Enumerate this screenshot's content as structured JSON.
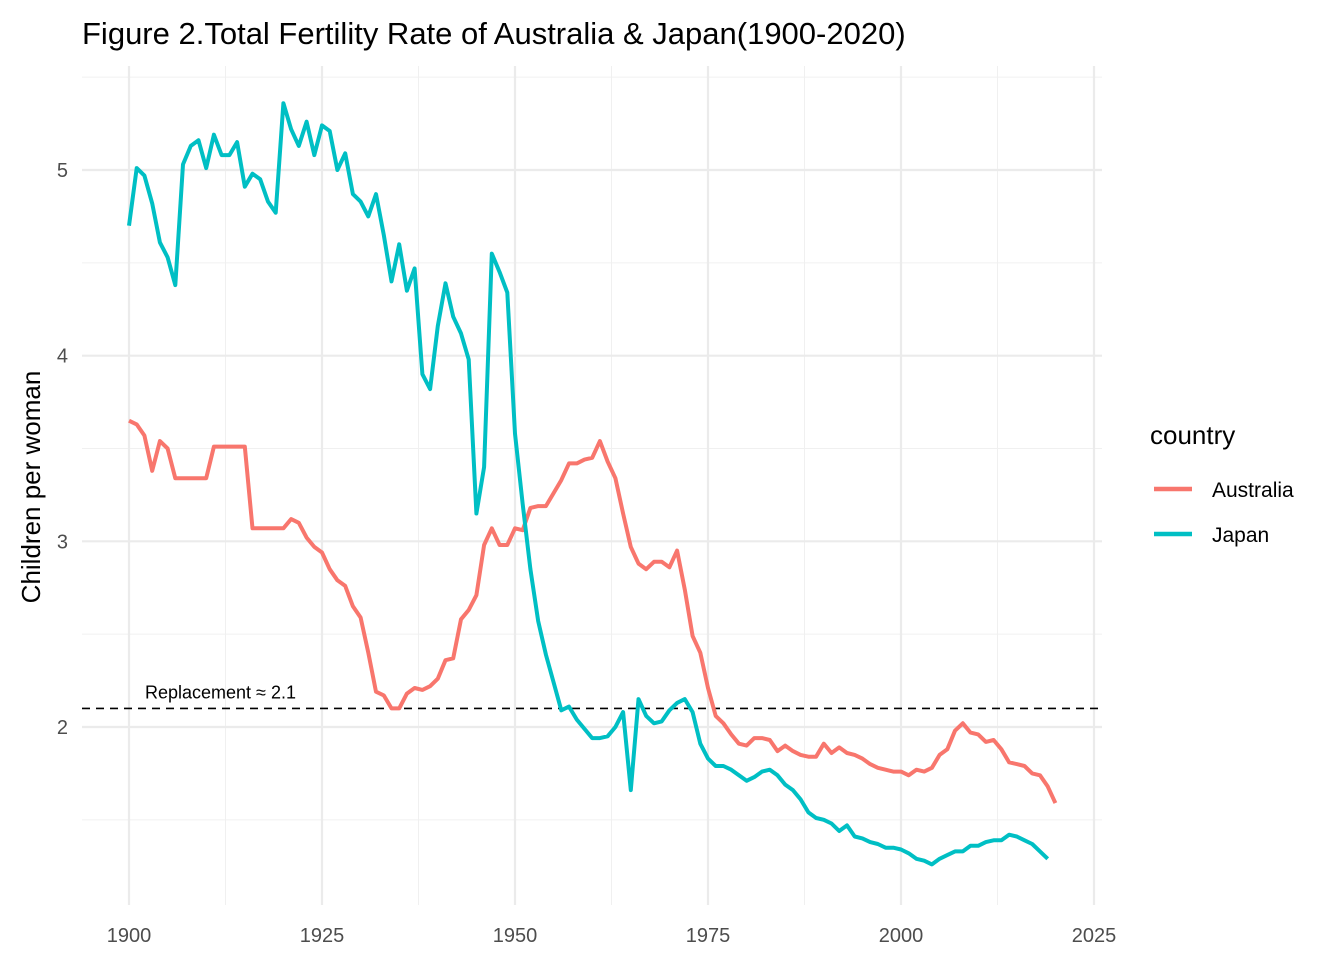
{
  "chart_data": {
    "type": "line",
    "title": "Figure 2.Total Fertility Rate of Australia & Japan(1900-2020)",
    "xlabel": "",
    "ylabel": "Children per woman",
    "xlim": [
      1900,
      2025
    ],
    "ylim": [
      1.2,
      5.5
    ],
    "x_ticks": [
      1900,
      1925,
      1950,
      1975,
      2000,
      2025
    ],
    "y_ticks": [
      2,
      3,
      4,
      5
    ],
    "grid": true,
    "legend": {
      "title": "country",
      "position": "right"
    },
    "reference_line": {
      "y": 2.1,
      "style": "dashed",
      "label": "Replacement ≈ 2.1"
    },
    "series": [
      {
        "name": "Australia",
        "color": "#F8766D",
        "points": [
          [
            1900,
            3.65
          ],
          [
            1901,
            3.63
          ],
          [
            1902,
            3.57
          ],
          [
            1903,
            3.38
          ],
          [
            1904,
            3.54
          ],
          [
            1905,
            3.5
          ],
          [
            1906,
            3.34
          ],
          [
            1907,
            3.34
          ],
          [
            1908,
            3.34
          ],
          [
            1909,
            3.34
          ],
          [
            1910,
            3.34
          ],
          [
            1911,
            3.51
          ],
          [
            1912,
            3.51
          ],
          [
            1913,
            3.51
          ],
          [
            1914,
            3.51
          ],
          [
            1915,
            3.51
          ],
          [
            1916,
            3.07
          ],
          [
            1917,
            3.07
          ],
          [
            1918,
            3.07
          ],
          [
            1919,
            3.07
          ],
          [
            1920,
            3.07
          ],
          [
            1921,
            3.12
          ],
          [
            1922,
            3.1
          ],
          [
            1923,
            3.02
          ],
          [
            1924,
            2.97
          ],
          [
            1925,
            2.94
          ],
          [
            1926,
            2.85
          ],
          [
            1927,
            2.79
          ],
          [
            1928,
            2.76
          ],
          [
            1929,
            2.65
          ],
          [
            1930,
            2.59
          ],
          [
            1931,
            2.4
          ],
          [
            1932,
            2.19
          ],
          [
            1933,
            2.17
          ],
          [
            1934,
            2.1
          ],
          [
            1935,
            2.1
          ],
          [
            1936,
            2.18
          ],
          [
            1937,
            2.21
          ],
          [
            1938,
            2.2
          ],
          [
            1939,
            2.22
          ],
          [
            1940,
            2.26
          ],
          [
            1941,
            2.36
          ],
          [
            1942,
            2.37
          ],
          [
            1943,
            2.58
          ],
          [
            1944,
            2.63
          ],
          [
            1945,
            2.71
          ],
          [
            1946,
            2.98
          ],
          [
            1947,
            3.07
          ],
          [
            1948,
            2.98
          ],
          [
            1949,
            2.98
          ],
          [
            1950,
            3.07
          ],
          [
            1951,
            3.06
          ],
          [
            1952,
            3.18
          ],
          [
            1953,
            3.19
          ],
          [
            1954,
            3.19
          ],
          [
            1955,
            3.26
          ],
          [
            1956,
            3.33
          ],
          [
            1957,
            3.42
          ],
          [
            1958,
            3.42
          ],
          [
            1959,
            3.44
          ],
          [
            1960,
            3.45
          ],
          [
            1961,
            3.54
          ],
          [
            1962,
            3.43
          ],
          [
            1963,
            3.34
          ],
          [
            1964,
            3.15
          ],
          [
            1965,
            2.97
          ],
          [
            1966,
            2.88
          ],
          [
            1967,
            2.85
          ],
          [
            1968,
            2.89
          ],
          [
            1969,
            2.89
          ],
          [
            1970,
            2.86
          ],
          [
            1971,
            2.95
          ],
          [
            1972,
            2.74
          ],
          [
            1973,
            2.49
          ],
          [
            1974,
            2.4
          ],
          [
            1975,
            2.21
          ],
          [
            1976,
            2.06
          ],
          [
            1977,
            2.02
          ],
          [
            1978,
            1.96
          ],
          [
            1979,
            1.91
          ],
          [
            1980,
            1.9
          ],
          [
            1981,
            1.94
          ],
          [
            1982,
            1.94
          ],
          [
            1983,
            1.93
          ],
          [
            1984,
            1.87
          ],
          [
            1985,
            1.9
          ],
          [
            1986,
            1.87
          ],
          [
            1987,
            1.85
          ],
          [
            1988,
            1.84
          ],
          [
            1989,
            1.84
          ],
          [
            1990,
            1.91
          ],
          [
            1991,
            1.86
          ],
          [
            1992,
            1.89
          ],
          [
            1993,
            1.86
          ],
          [
            1994,
            1.85
          ],
          [
            1995,
            1.83
          ],
          [
            1996,
            1.8
          ],
          [
            1997,
            1.78
          ],
          [
            1998,
            1.77
          ],
          [
            1999,
            1.76
          ],
          [
            2000,
            1.76
          ],
          [
            2001,
            1.74
          ],
          [
            2002,
            1.77
          ],
          [
            2003,
            1.76
          ],
          [
            2004,
            1.78
          ],
          [
            2005,
            1.85
          ],
          [
            2006,
            1.88
          ],
          [
            2007,
            1.98
          ],
          [
            2008,
            2.02
          ],
          [
            2009,
            1.97
          ],
          [
            2010,
            1.96
          ],
          [
            2011,
            1.92
          ],
          [
            2012,
            1.93
          ],
          [
            2013,
            1.88
          ],
          [
            2014,
            1.81
          ],
          [
            2015,
            1.8
          ],
          [
            2016,
            1.79
          ],
          [
            2017,
            1.75
          ],
          [
            2018,
            1.74
          ],
          [
            2019,
            1.68
          ],
          [
            2020,
            1.59
          ]
        ]
      },
      {
        "name": "Japan",
        "color": "#00BFC4",
        "points": [
          [
            1900,
            4.7
          ],
          [
            1901,
            5.01
          ],
          [
            1902,
            4.97
          ],
          [
            1903,
            4.82
          ],
          [
            1904,
            4.61
          ],
          [
            1905,
            4.53
          ],
          [
            1906,
            4.38
          ],
          [
            1907,
            5.03
          ],
          [
            1908,
            5.13
          ],
          [
            1909,
            5.16
          ],
          [
            1910,
            5.01
          ],
          [
            1911,
            5.19
          ],
          [
            1912,
            5.08
          ],
          [
            1913,
            5.08
          ],
          [
            1914,
            5.15
          ],
          [
            1915,
            4.91
          ],
          [
            1916,
            4.98
          ],
          [
            1917,
            4.95
          ],
          [
            1918,
            4.83
          ],
          [
            1919,
            4.77
          ],
          [
            1920,
            5.36
          ],
          [
            1921,
            5.22
          ],
          [
            1922,
            5.13
          ],
          [
            1923,
            5.26
          ],
          [
            1924,
            5.08
          ],
          [
            1925,
            5.24
          ],
          [
            1926,
            5.21
          ],
          [
            1927,
            5.0
          ],
          [
            1928,
            5.09
          ],
          [
            1929,
            4.87
          ],
          [
            1930,
            4.83
          ],
          [
            1931,
            4.75
          ],
          [
            1932,
            4.87
          ],
          [
            1933,
            4.65
          ],
          [
            1934,
            4.4
          ],
          [
            1935,
            4.6
          ],
          [
            1936,
            4.35
          ],
          [
            1937,
            4.47
          ],
          [
            1938,
            3.9
          ],
          [
            1939,
            3.82
          ],
          [
            1940,
            4.16
          ],
          [
            1941,
            4.39
          ],
          [
            1942,
            4.21
          ],
          [
            1943,
            4.12
          ],
          [
            1944,
            3.98
          ],
          [
            1945,
            3.15
          ],
          [
            1946,
            3.4
          ],
          [
            1947,
            4.55
          ],
          [
            1948,
            4.45
          ],
          [
            1949,
            4.34
          ],
          [
            1950,
            3.58
          ],
          [
            1951,
            3.2
          ],
          [
            1952,
            2.85
          ],
          [
            1953,
            2.57
          ],
          [
            1954,
            2.39
          ],
          [
            1955,
            2.24
          ],
          [
            1956,
            2.09
          ],
          [
            1957,
            2.11
          ],
          [
            1958,
            2.04
          ],
          [
            1959,
            1.99
          ],
          [
            1960,
            1.94
          ],
          [
            1961,
            1.94
          ],
          [
            1962,
            1.95
          ],
          [
            1963,
            2.0
          ],
          [
            1964,
            2.08
          ],
          [
            1965,
            1.66
          ],
          [
            1966,
            2.15
          ],
          [
            1967,
            2.06
          ],
          [
            1968,
            2.02
          ],
          [
            1969,
            2.03
          ],
          [
            1970,
            2.09
          ],
          [
            1971,
            2.13
          ],
          [
            1972,
            2.15
          ],
          [
            1973,
            2.08
          ],
          [
            1974,
            1.91
          ],
          [
            1975,
            1.83
          ],
          [
            1976,
            1.79
          ],
          [
            1977,
            1.79
          ],
          [
            1978,
            1.77
          ],
          [
            1979,
            1.74
          ],
          [
            1980,
            1.71
          ],
          [
            1981,
            1.73
          ],
          [
            1982,
            1.76
          ],
          [
            1983,
            1.77
          ],
          [
            1984,
            1.74
          ],
          [
            1985,
            1.69
          ],
          [
            1986,
            1.66
          ],
          [
            1987,
            1.61
          ],
          [
            1988,
            1.54
          ],
          [
            1989,
            1.51
          ],
          [
            1990,
            1.5
          ],
          [
            1991,
            1.48
          ],
          [
            1992,
            1.44
          ],
          [
            1993,
            1.47
          ],
          [
            1994,
            1.41
          ],
          [
            1995,
            1.4
          ],
          [
            1996,
            1.38
          ],
          [
            1997,
            1.37
          ],
          [
            1998,
            1.35
          ],
          [
            1999,
            1.35
          ],
          [
            2000,
            1.34
          ],
          [
            2001,
            1.32
          ],
          [
            2002,
            1.29
          ],
          [
            2003,
            1.28
          ],
          [
            2004,
            1.26
          ],
          [
            2005,
            1.29
          ],
          [
            2006,
            1.31
          ],
          [
            2007,
            1.33
          ],
          [
            2008,
            1.33
          ],
          [
            2009,
            1.36
          ],
          [
            2010,
            1.36
          ],
          [
            2011,
            1.38
          ],
          [
            2012,
            1.39
          ],
          [
            2013,
            1.39
          ],
          [
            2014,
            1.42
          ],
          [
            2015,
            1.41
          ],
          [
            2016,
            1.39
          ],
          [
            2017,
            1.37
          ],
          [
            2018,
            1.33
          ],
          [
            2019,
            1.29
          ]
        ]
      }
    ]
  }
}
